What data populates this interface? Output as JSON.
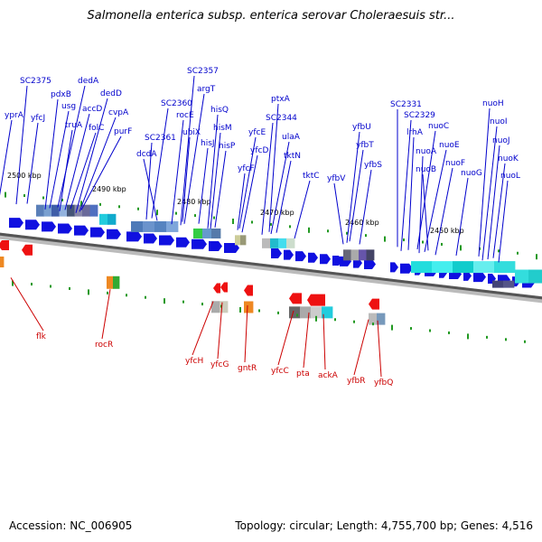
{
  "title": "Salmonella enterica subsp. enterica serovar Choleraesuis str...",
  "accession": "Accession: NC_006905",
  "stats": "Topology: circular; Length: 4,755,700 bp; Genes: 4,516",
  "colors": {
    "forward_label": "#0000cc",
    "reverse_label": "#cc0000",
    "forward_gene": "#1010e0",
    "reverse_gene": "#ee1111",
    "backbone": "#888888"
  },
  "scale_labels": [
    "2500 kbp",
    "2490 kbp",
    "2480 kbp",
    "2470 kbp",
    "2460 kbp",
    "2450 kbp"
  ],
  "forward_labels": [
    "yprA",
    "SC2375",
    "yfcJ",
    "pdxB",
    "usg",
    "dedA",
    "truA",
    "accD",
    "folC",
    "dedD",
    "cvpA",
    "purF",
    "SC2357",
    "argT",
    "SC2360",
    "rocE",
    "SC2361",
    "ubiX",
    "hisQ",
    "dcdA",
    "hisJ",
    "hisM",
    "hisP",
    "yfcE",
    "yfcD",
    "yfcF",
    "ptxA",
    "SC2344",
    "ulaA",
    "tktN",
    "tktC",
    "yfbU",
    "yfbT",
    "yfbV",
    "yfbS",
    "SC2331",
    "SC2329",
    "lrhA",
    "nuoC",
    "nuoA",
    "nuoE",
    "nuoB",
    "nuoF",
    "nuoG",
    "nuoH",
    "nuoI",
    "nuoJ",
    "nuoK",
    "nuoL"
  ],
  "reverse_labels": [
    "flk",
    "rocR",
    "yfcH",
    "yfcG",
    "gntR",
    "yfcC",
    "pta",
    "ackA",
    "yfbR",
    "yfbQ"
  ]
}
